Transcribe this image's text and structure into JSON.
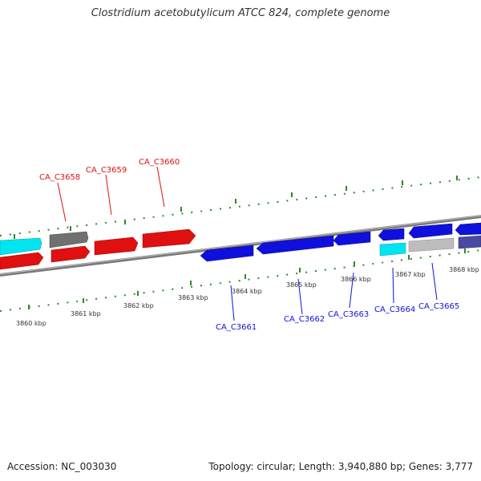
{
  "title": "Clostridium acetobutylicum ATCC 824, complete genome",
  "footer": {
    "accession": "Accession: NC_003030",
    "summary": "Topology: circular; Length: 3,940,880 bp; Genes: 3,777"
  },
  "colors": {
    "forward_gene": "#e01010",
    "reverse_gene": "#1010dd",
    "rna_cyan": "#00e5f0",
    "gray_feature": "#707070",
    "light_gray_feature": "#bdbdbd",
    "purple_feature": "#4a4aa0",
    "backbone": "#7a7a7a",
    "ticks": "#2a8a2a"
  },
  "kbp_labels": [
    "3860 kbp",
    "3861 kbp",
    "3862 kbp",
    "3863 kbp",
    "3864 kbp",
    "3865 kbp",
    "3866 kbp",
    "3867 kbp",
    "3868 kbp"
  ],
  "gene_labels_forward": [
    "CA_C3658",
    "CA_C3659",
    "CA_C3660"
  ],
  "gene_labels_reverse": [
    "CA_C3661",
    "CA_C3662",
    "CA_C3663",
    "CA_C3664",
    "CA_C3665"
  ]
}
